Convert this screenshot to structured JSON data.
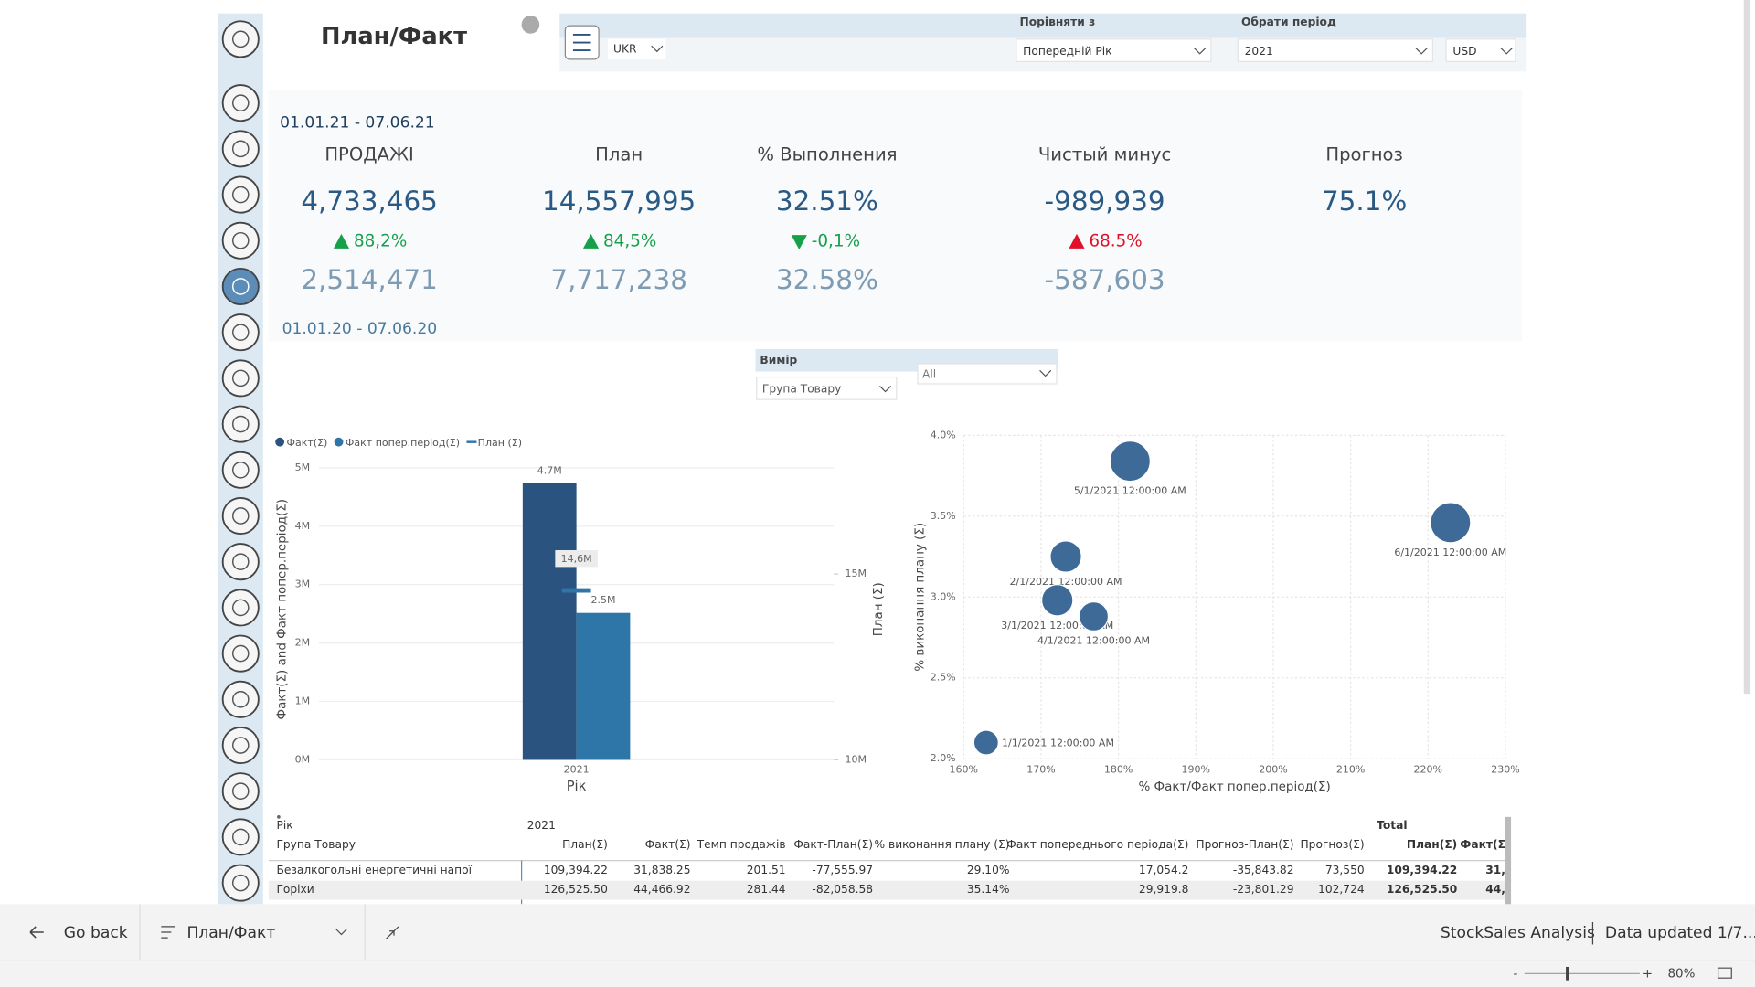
{
  "header": {
    "title": "План/Факт",
    "region": "UKR",
    "compare_label": "Порівняти з",
    "compare_value": "Попередній Рік",
    "period_label": "Обрати період",
    "period_value": "2021",
    "currency": "USD"
  },
  "kpis": {
    "period": "01.01.21 - 07.06.21",
    "prev_period": "01.01.20 - 07.06.20",
    "items": [
      {
        "title": "ПРОДАЖІ",
        "value": "4,733,465",
        "change": "88,2%",
        "trend": "up",
        "change_color": "#16a04a",
        "prev": "2,514,471"
      },
      {
        "title": "План",
        "value": "14,557,995",
        "change": "84,5%",
        "trend": "up",
        "change_color": "#16a04a",
        "prev": "7,717,238"
      },
      {
        "title": "% Выполнения",
        "value": "32.51%",
        "change": "-0,1%",
        "trend": "down",
        "change_color": "#16a04a",
        "prev": "32.58%"
      },
      {
        "title": "Чистый минус",
        "value": "-989,939",
        "change": "68.5%",
        "trend": "up",
        "change_color": "#e0102a",
        "prev": "-587,603"
      },
      {
        "title": "Прогноз",
        "value": "75.1%"
      }
    ]
  },
  "dimension": {
    "label": "Вимір",
    "value": "Група Товару",
    "filter": "All"
  },
  "chart_data": [
    {
      "type": "bar",
      "x_label": "Рік",
      "y_label": "Факт(Σ) and Факт попер.період(Σ)",
      "y2_label": "План (Σ)",
      "categories": [
        "2021"
      ],
      "series": [
        {
          "name": "Факт(Σ)",
          "color": "#2a5380",
          "values": [
            4733465
          ],
          "value_labels": [
            "4.7M"
          ]
        },
        {
          "name": "Факт попер.період(Σ)",
          "color": "#2f76a8",
          "values": [
            2514471
          ],
          "value_labels": [
            "2.5M"
          ]
        },
        {
          "name": "План (Σ)",
          "type": "line",
          "axis": "y2",
          "color": "#2f76a8",
          "values": [
            14557995
          ],
          "value_labels": [
            "14,6M"
          ]
        }
      ],
      "ylim": [
        0,
        5000000
      ],
      "yticks": [
        {
          "value": 0,
          "label": "0M"
        },
        {
          "value": 1000000,
          "label": "1M"
        },
        {
          "value": 2000000,
          "label": "2M"
        },
        {
          "value": 3000000,
          "label": "3M"
        },
        {
          "value": 4000000,
          "label": "4M"
        },
        {
          "value": 5000000,
          "label": "5M"
        }
      ],
      "y2lim": [
        10000000,
        17860000
      ],
      "y2ticks": [
        {
          "value": 10000000,
          "label": "10M"
        },
        {
          "value": 15000000,
          "label": "15M"
        }
      ],
      "grid": true
    },
    {
      "type": "scatter",
      "x_label": "% Факт/Факт попер.період(Σ)",
      "y_label": "% виконання плану (Σ)",
      "series": [
        {
          "color": "#3e6a98",
          "x": [
            162.9,
            173.2,
            172.1,
            176.8,
            181.5,
            222.9
          ],
          "values": [
            2.1,
            3.25,
            2.98,
            2.88,
            3.84,
            3.46
          ],
          "sizes": [
            11,
            14,
            14,
            13,
            18,
            18
          ],
          "labels": [
            "1/1/2021 12:00:00 AM",
            "2/1/2021 12:00:00 AM",
            "3/1/2021 12:00:00 AM",
            "4/1/2021 12:00:00 AM",
            "5/1/2021 12:00:00 AM",
            "6/1/2021 12:00:00 AM"
          ]
        }
      ],
      "xlim": [
        160,
        230
      ],
      "xticks": [
        {
          "value": 160,
          "label": "160%"
        },
        {
          "value": 170,
          "label": "170%"
        },
        {
          "value": 180,
          "label": "180%"
        },
        {
          "value": 190,
          "label": "190%"
        },
        {
          "value": 200,
          "label": "200%"
        },
        {
          "value": 210,
          "label": "210%"
        },
        {
          "value": 220,
          "label": "220%"
        },
        {
          "value": 230,
          "label": "230%"
        }
      ],
      "ylim": [
        2,
        4
      ],
      "yticks": [
        {
          "value": 2,
          "label": "2.0%"
        },
        {
          "value": 2.5,
          "label": "2.5%"
        },
        {
          "value": 3,
          "label": "3.0%"
        },
        {
          "value": 3.5,
          "label": "3.5%"
        },
        {
          "value": 4,
          "label": "4.0%"
        }
      ],
      "grid": true
    }
  ],
  "table": {
    "row_header": "Рік",
    "year": "2021",
    "total": "Total",
    "group_header": "Група Товару",
    "columns": [
      "План(Σ)",
      "Факт(Σ)",
      "Темп продажів",
      "Факт-План(Σ)",
      "% виконання плану (Σ)",
      "Факт попереднього періода(Σ)",
      "Прогноз-План(Σ)",
      "Прогноз(Σ)",
      "План(Σ)",
      "Факт(Σ"
    ],
    "rows": [
      [
        "Безалкогольні енергетичні напої",
        "109,394.22",
        "31,838.25",
        "201.51",
        "-77,555.97",
        "29.10%",
        "17,054.2",
        "-35,843.82",
        "73,550",
        "109,394.22",
        "31,"
      ],
      [
        "Горіхи",
        "126,525.50",
        "44,466.92",
        "281.44",
        "-82,058.58",
        "35.14%",
        "29,919.8",
        "-23,801.29",
        "102,724",
        "126,525.50",
        "44,"
      ]
    ]
  },
  "footer": {
    "back": "Go back",
    "page": "План/Факт",
    "app": "StockSales Analysis",
    "updated": "Data updated 1/7...",
    "zoom": "80%",
    "zoom_out": "-",
    "zoom_in": "+"
  }
}
